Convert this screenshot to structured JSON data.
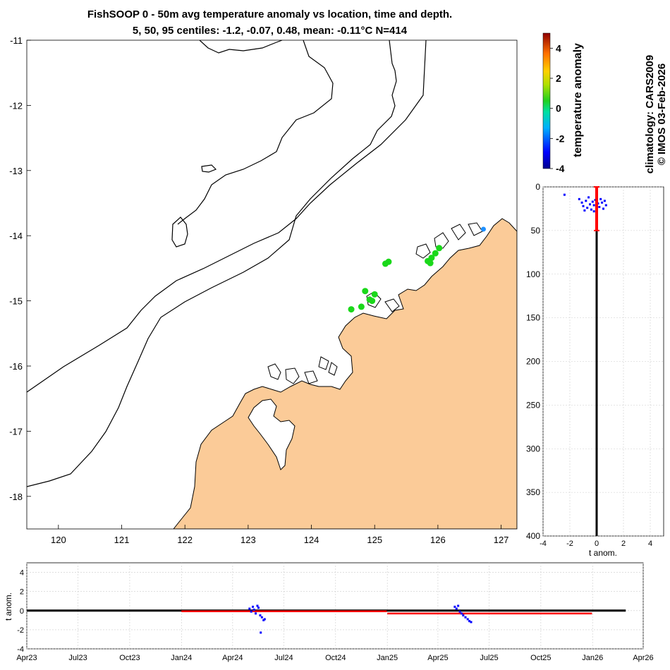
{
  "title_line1": "FishSOOP 0 - 50m avg temperature anomaly vs location, time and depth.",
  "title_line2": "5, 50, 95 centiles: -1.2, -0.07, 0.48, mean: -0.11°C N=414",
  "attribution": [
    "climatology: CARS2009",
    "© IMOS 03-Feb-2026"
  ],
  "colorbar": {
    "label": "temperature anomaly",
    "ticks": [
      "4",
      "2",
      "0",
      "-2",
      "-4"
    ],
    "range": [
      -4,
      5
    ]
  },
  "colors": {
    "land": "#fbcb98",
    "obs_cold": "#0000ff",
    "obs_neutral": "#1ad81a",
    "obs_slightly_cold": "#1e90ff",
    "median_line": "#ff0000",
    "zero_line": "#000000",
    "grid": "#cccccc"
  },
  "chart_data": [
    {
      "type": "scatter",
      "name": "map",
      "xlim": [
        119.5,
        127.25
      ],
      "ylim": [
        -18.5,
        -11
      ],
      "xticks": [
        "120",
        "121",
        "122",
        "123",
        "124",
        "125",
        "126",
        "127"
      ],
      "yticks": [
        "-11",
        "-12",
        "-13",
        "-14",
        "-15",
        "-16",
        "-17",
        "-18"
      ],
      "points": [
        {
          "lon": 124.63,
          "lat": -15.13,
          "anom": 0.1
        },
        {
          "lon": 124.79,
          "lat": -15.09,
          "anom": 0.0
        },
        {
          "lon": 124.85,
          "lat": -14.85,
          "anom": 0.1
        },
        {
          "lon": 124.92,
          "lat": -14.98,
          "anom": 0.0
        },
        {
          "lon": 125.0,
          "lat": -14.9,
          "anom": 0.1
        },
        {
          "lon": 124.96,
          "lat": -15.0,
          "anom": 0.0
        },
        {
          "lon": 125.17,
          "lat": -14.43,
          "anom": 0.1
        },
        {
          "lon": 125.22,
          "lat": -14.4,
          "anom": 0.0
        },
        {
          "lon": 125.84,
          "lat": -14.39,
          "anom": 0.0
        },
        {
          "lon": 125.9,
          "lat": -14.34,
          "anom": 0.1
        },
        {
          "lon": 125.96,
          "lat": -14.27,
          "anom": 0.0
        },
        {
          "lon": 126.02,
          "lat": -14.19,
          "anom": 0.1
        },
        {
          "lon": 125.88,
          "lat": -14.42,
          "anom": 0.0
        },
        {
          "lon": 126.72,
          "lat": -13.9,
          "anom": -1.5
        }
      ]
    },
    {
      "type": "scatter",
      "name": "depth profile",
      "xlabel": "t anom.",
      "xlim": [
        -4,
        5
      ],
      "ylim": [
        400,
        0
      ],
      "xticks": [
        "-4",
        "-2",
        "0",
        "2",
        "4"
      ],
      "yticks": [
        "0",
        "50",
        "100",
        "150",
        "200",
        "250",
        "300",
        "350",
        "400"
      ],
      "median_segment": {
        "x": 0.0,
        "depth_from": 0,
        "depth_to": 50
      },
      "points": [
        {
          "x": -2.4,
          "depth": 9
        },
        {
          "x": -1.3,
          "depth": 14
        },
        {
          "x": -1.1,
          "depth": 18
        },
        {
          "x": -1.0,
          "depth": 22
        },
        {
          "x": -0.8,
          "depth": 16
        },
        {
          "x": -0.7,
          "depth": 24
        },
        {
          "x": -0.6,
          "depth": 12
        },
        {
          "x": -0.5,
          "depth": 20
        },
        {
          "x": -0.4,
          "depth": 26
        },
        {
          "x": -0.3,
          "depth": 17
        },
        {
          "x": -0.2,
          "depth": 21
        },
        {
          "x": -0.1,
          "depth": 15
        },
        {
          "x": 0.1,
          "depth": 19
        },
        {
          "x": 0.2,
          "depth": 23
        },
        {
          "x": 0.3,
          "depth": 14
        },
        {
          "x": 0.4,
          "depth": 18
        },
        {
          "x": 0.5,
          "depth": 25
        },
        {
          "x": 0.6,
          "depth": 16
        },
        {
          "x": 0.7,
          "depth": 21
        },
        {
          "x": -0.9,
          "depth": 27
        },
        {
          "x": -0.2,
          "depth": 28
        }
      ]
    },
    {
      "type": "scatter",
      "name": "time series",
      "ylabel": "t anom.",
      "ylim": [
        -4,
        5
      ],
      "yticks": [
        "4",
        "2",
        "0",
        "-2",
        "-4"
      ],
      "xlim": [
        "2023-04-01",
        "2026-04-01"
      ],
      "xticks": [
        "Apr23",
        "Jul23",
        "Oct23",
        "Jan24",
        "Apr24",
        "Jul24",
        "Oct24",
        "Jan25",
        "Apr25",
        "Jul25",
        "Oct25",
        "Jan26",
        "Apr26"
      ],
      "zero_line": {
        "from": "2023-04-01",
        "to": "2026-03-01"
      },
      "median_segments": [
        {
          "from": "2024-01-01",
          "to": "2024-12-31",
          "value": -0.07
        },
        {
          "from": "2025-01-01",
          "to": "2025-12-31",
          "value": -0.3
        }
      ],
      "points": [
        {
          "date": "2024-05-01",
          "value": 0.2
        },
        {
          "date": "2024-05-04",
          "value": -0.1
        },
        {
          "date": "2024-05-07",
          "value": 0.4
        },
        {
          "date": "2024-05-09",
          "value": 0.1
        },
        {
          "date": "2024-05-12",
          "value": -0.3
        },
        {
          "date": "2024-05-15",
          "value": 0.5
        },
        {
          "date": "2024-05-17",
          "value": 0.3
        },
        {
          "date": "2024-05-20",
          "value": -0.5
        },
        {
          "date": "2024-05-21",
          "value": -2.3
        },
        {
          "date": "2024-05-23",
          "value": -0.7
        },
        {
          "date": "2024-05-26",
          "value": -1.0
        },
        {
          "date": "2024-05-28",
          "value": -0.9
        },
        {
          "date": "2025-05-01",
          "value": 0.4
        },
        {
          "date": "2025-05-04",
          "value": 0.2
        },
        {
          "date": "2025-05-07",
          "value": 0.5
        },
        {
          "date": "2025-05-10",
          "value": -0.1
        },
        {
          "date": "2025-05-13",
          "value": -0.3
        },
        {
          "date": "2025-05-16",
          "value": -0.5
        },
        {
          "date": "2025-05-20",
          "value": -0.7
        },
        {
          "date": "2025-05-24",
          "value": -0.9
        },
        {
          "date": "2025-05-27",
          "value": -1.1
        },
        {
          "date": "2025-05-30",
          "value": -1.2
        }
      ]
    }
  ]
}
